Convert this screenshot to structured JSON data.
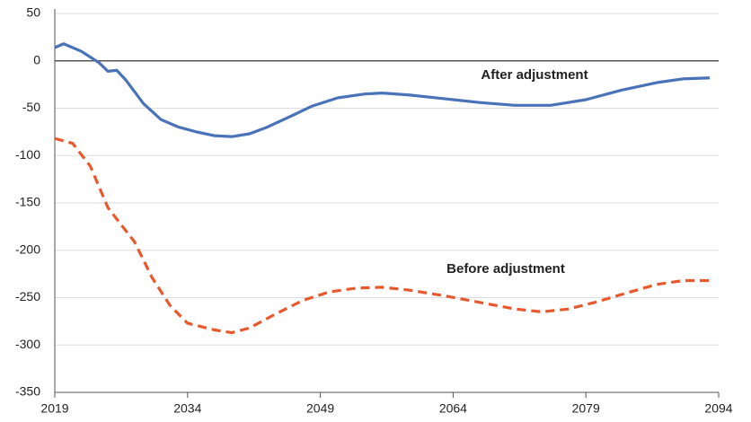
{
  "chart_data": {
    "type": "line",
    "xlim": [
      2019,
      2094
    ],
    "xticks": [
      2019,
      2034,
      2049,
      2064,
      2079,
      2094
    ],
    "ylim": [
      -350,
      50
    ],
    "yticks": [
      50,
      0,
      -50,
      -100,
      -150,
      -200,
      -250,
      -300,
      -350
    ],
    "grid": true,
    "series": [
      {
        "name": "After adjustment",
        "color": "#4a72b8",
        "dashed": false,
        "x": [
          2019,
          2020,
          2022,
          2024,
          2025,
          2026,
          2027,
          2029,
          2031,
          2033,
          2035,
          2037,
          2039,
          2041,
          2043,
          2046,
          2048,
          2051,
          2054,
          2056,
          2059,
          2063,
          2067,
          2071,
          2075,
          2079,
          2083,
          2087,
          2090,
          2093
        ],
        "values": [
          14,
          18,
          10,
          -2,
          -11,
          -10,
          -20,
          -45,
          -62,
          -70,
          -75,
          -79,
          -80,
          -77,
          -70,
          -57,
          -48,
          -39,
          -35,
          -34,
          -36,
          -40,
          -44,
          -47,
          -47,
          -41,
          -31,
          -23,
          -19,
          -18
        ]
      },
      {
        "name": "Before adjustment",
        "color": "#e8582c",
        "dashed": true,
        "x": [
          2019,
          2021,
          2023,
          2025,
          2028,
          2030,
          2032,
          2034,
          2037,
          2039,
          2041,
          2044,
          2047,
          2050,
          2053,
          2056,
          2059,
          2063,
          2067,
          2071,
          2074,
          2077,
          2080,
          2084,
          2087,
          2090,
          2093
        ],
        "values": [
          -82,
          -87,
          -111,
          -155,
          -191,
          -229,
          -258,
          -277,
          -284,
          -287,
          -282,
          -267,
          -253,
          -244,
          -240,
          -239,
          -242,
          -248,
          -255,
          -262,
          -265,
          -262,
          -255,
          -244,
          -236,
          -232,
          -232
        ]
      }
    ]
  }
}
